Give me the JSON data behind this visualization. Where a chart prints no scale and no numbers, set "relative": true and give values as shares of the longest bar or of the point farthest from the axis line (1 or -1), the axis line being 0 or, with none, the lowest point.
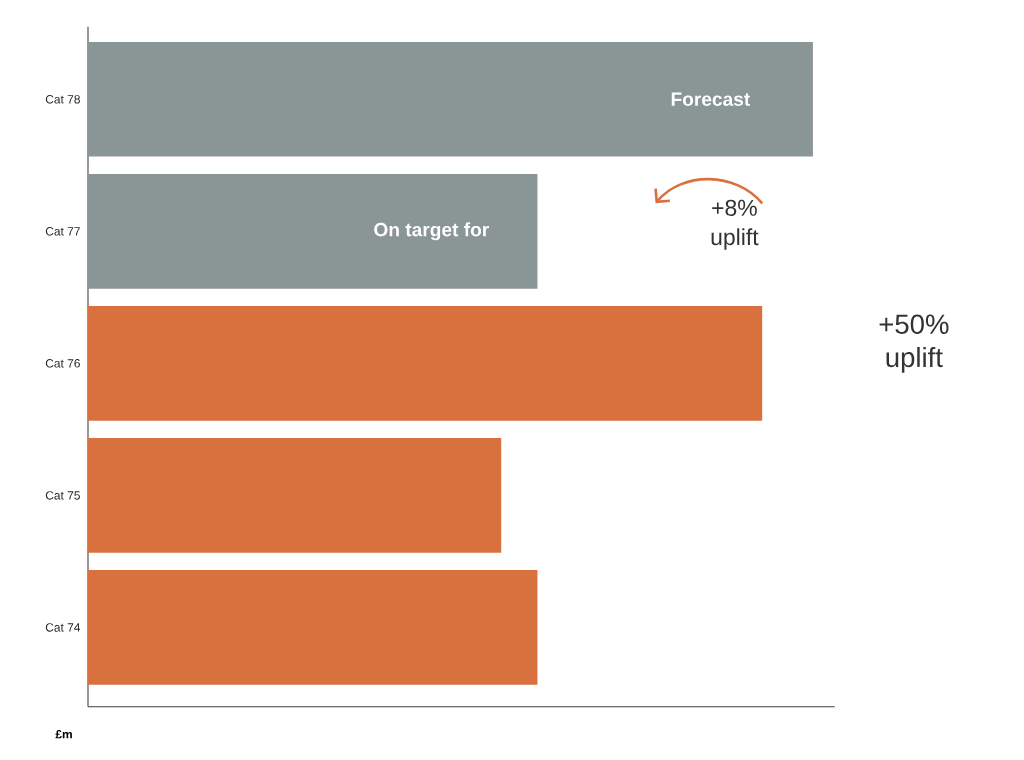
{
  "chart_data": {
    "type": "bar",
    "orientation": "horizontal",
    "relative": true,
    "xlabel": "£m",
    "categories": [
      "Cat 78",
      "Cat 77",
      "Cat 76",
      "Cat 75",
      "Cat 74"
    ],
    "values": [
      1,
      0.62,
      0.93,
      0.57,
      0.62
    ],
    "colors": [
      "#8a9695",
      "#8a9695",
      "#d9713f",
      "#d9713f",
      "#d9713f"
    ],
    "annotations": [
      {
        "text": "Forecast",
        "x": 0.92,
        "y": "Cat 78"
      },
      {
        "text": "On target for",
        "x": 0.56,
        "y": "Cat 77"
      },
      "+8% uplift",
      "+50% uplift"
    ]
  }
}
